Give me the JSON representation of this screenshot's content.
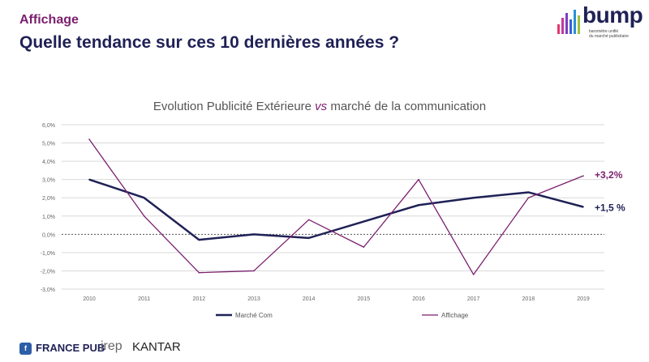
{
  "header": {
    "kicker": "Affichage",
    "headline": "Quelle tendance sur ces 10 dernières années ?"
  },
  "logo": {
    "word": "bump",
    "tagline_1": "baromètre unifié",
    "tagline_2": "du marché publicitaire"
  },
  "chart_data": {
    "type": "line",
    "title_parts": [
      "Evolution  Publicité Extérieure ",
      "vs",
      " marché de la communication"
    ],
    "x": [
      "2010",
      "2011",
      "2012",
      "2013",
      "2014",
      "2015",
      "2016",
      "2017",
      "2018",
      "2019"
    ],
    "yticks": [
      "6,0%",
      "5,0%",
      "4,0%",
      "3,0%",
      "2,0%",
      "1,0%",
      "0,0%",
      "-1,0%",
      "-2,0%",
      "-3,0%"
    ],
    "ylim": [
      -3,
      6
    ],
    "grid": true,
    "legend_position": "bottom",
    "series": [
      {
        "name": "Marché Com",
        "color": "#1f2156",
        "values": [
          3.0,
          2.0,
          -0.3,
          0.0,
          -0.2,
          0.7,
          1.6,
          2.0,
          2.3,
          1.5
        ],
        "end_label": "+1,5 %"
      },
      {
        "name": "Affichage",
        "color": "#7a1f6e",
        "values": [
          5.2,
          1.0,
          -2.1,
          -2.0,
          0.8,
          -0.7,
          3.0,
          -2.2,
          2.0,
          3.2
        ],
        "end_label": "+3,2%"
      }
    ]
  },
  "footer": {
    "brand_1": "FRANCE PUB",
    "brand_2": "irep",
    "brand_3": "KANTAR"
  }
}
